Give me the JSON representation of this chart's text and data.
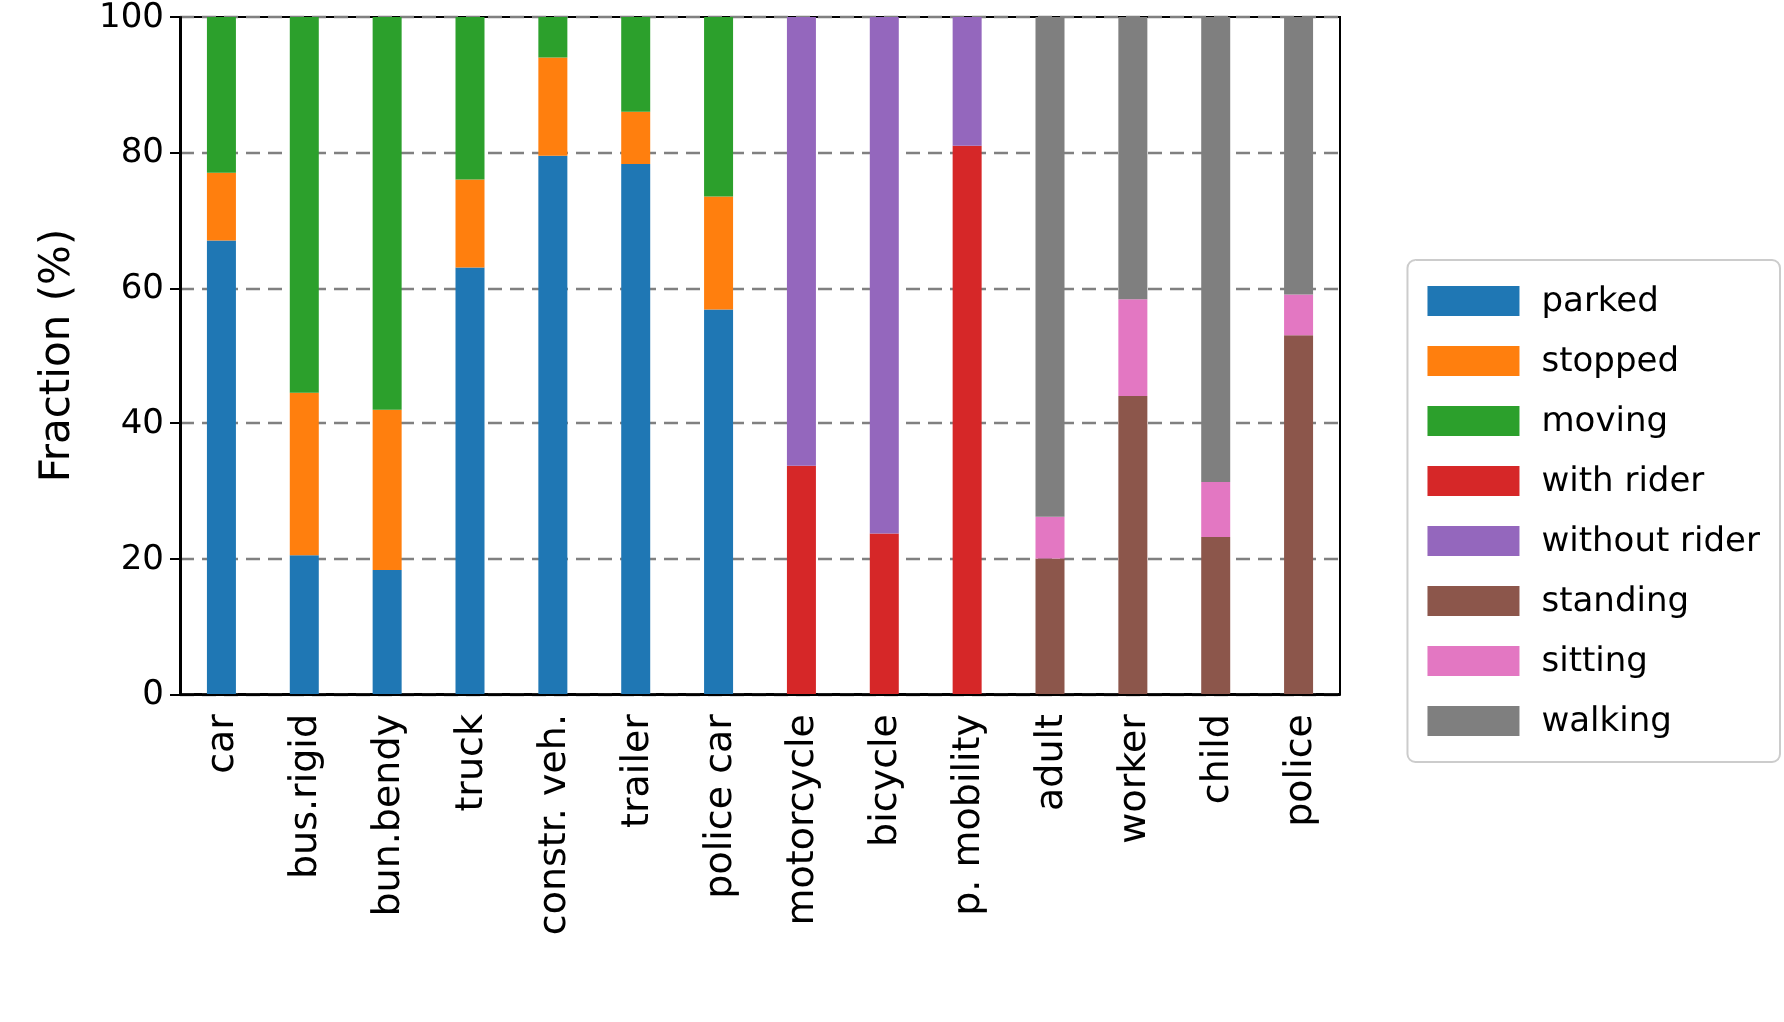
{
  "chart_data": {
    "type": "bar",
    "stacked": true,
    "ylabel": "Fraction (%)",
    "ylim": [
      0,
      100
    ],
    "yticks": [
      0,
      20,
      40,
      60,
      80,
      100
    ],
    "grid": "y",
    "legend": "right",
    "categories": [
      "car",
      "bus.rigid",
      "bun.bendy",
      "truck",
      "constr. veh.",
      "trailer",
      "police car",
      "motorcycle",
      "bicycle",
      "p. mobility",
      "adult",
      "worker",
      "child",
      "police"
    ],
    "series": [
      {
        "name": "parked",
        "color": "#1f77b4",
        "values": [
          67,
          20.5,
          18.3,
          63,
          79.5,
          78.3,
          56.8,
          null,
          null,
          null,
          null,
          null,
          null,
          null
        ]
      },
      {
        "name": "stopped",
        "color": "#ff7f0e",
        "values": [
          10,
          24,
          23.7,
          13,
          14.5,
          7.7,
          16.7,
          null,
          null,
          null,
          null,
          null,
          null,
          null
        ]
      },
      {
        "name": "moving",
        "color": "#2ca02c",
        "values": [
          23,
          55.5,
          58,
          24,
          6,
          14,
          26.5,
          null,
          null,
          null,
          null,
          null,
          null,
          null
        ]
      },
      {
        "name": "with rider",
        "color": "#d62728",
        "values": [
          null,
          null,
          null,
          null,
          null,
          null,
          null,
          33.7,
          23.7,
          81,
          null,
          null,
          null,
          null
        ]
      },
      {
        "name": "without rider",
        "color": "#9467bd",
        "values": [
          null,
          null,
          null,
          null,
          null,
          null,
          null,
          66.3,
          76.3,
          19,
          null,
          null,
          null,
          null
        ]
      },
      {
        "name": "standing",
        "color": "#8c564b",
        "values": [
          null,
          null,
          null,
          null,
          null,
          null,
          null,
          null,
          null,
          null,
          20,
          44,
          23.2,
          53
        ]
      },
      {
        "name": "sitting",
        "color": "#e377c2",
        "values": [
          null,
          null,
          null,
          null,
          null,
          null,
          null,
          null,
          null,
          null,
          6.2,
          14.3,
          8.1,
          6
        ]
      },
      {
        "name": "walking",
        "color": "#7f7f7f",
        "values": [
          null,
          null,
          null,
          null,
          null,
          null,
          null,
          null,
          null,
          null,
          73.8,
          41.7,
          68.7,
          41
        ]
      }
    ]
  }
}
